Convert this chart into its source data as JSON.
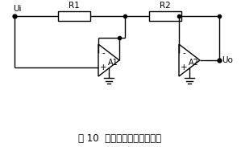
{
  "title": "图 10  单电源运放无二极管型",
  "background_color": "#ffffff",
  "line_color": "#000000",
  "text_color": "#000000",
  "ui_label": "Ui",
  "uo_label": "Uo",
  "r1_label": "R1",
  "r2_label": "R2",
  "a1_label": "A1",
  "a2_label": "A2",
  "minus_label": "-",
  "plus_label": "+",
  "title_fontsize": 8.5
}
